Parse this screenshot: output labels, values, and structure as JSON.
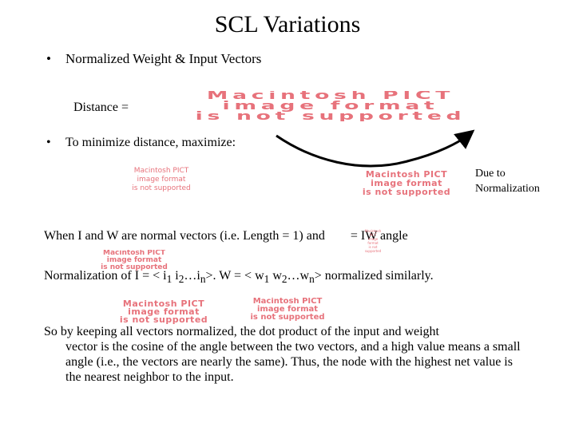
{
  "title": "SCL Variations",
  "bullet1": {
    "marker": "•",
    "text": "Normalized Weight & Input Vectors"
  },
  "distance_label": "Distance =",
  "bullet2": {
    "marker": "•",
    "text": "To minimize distance, maximize:"
  },
  "due_note": "Due to Normalization",
  "line1": {
    "before": "When I and W are normal vectors (i.e. Length = 1) and",
    "after": "= IW angle"
  },
  "line2": {
    "a": "Normalization of I = < i",
    "s1": "1",
    "b": " i",
    "s2": "2",
    "c": "…i",
    "sn": "n",
    "d": ">. W = < w",
    "t1": "1",
    "e": " w",
    "t2": "2",
    "f": "…w",
    "tn": "n",
    "g": "> normalized similarly."
  },
  "paragraph": {
    "first": "So by keeping all vectors normalized, the dot product of the input and weight",
    "rest": "vector is the cosine of the angle between the two vectors, and a high value means a small angle (i.e., the vectors are nearly the same). Thus, the node with the highest net value is the nearest neighbor to the input."
  },
  "placeholder": {
    "line1": "Macintosh PICT",
    "line2": "image format",
    "line3": "is not supported"
  },
  "colors": {
    "placeholder_text": "#e7727b",
    "text": "#000000",
    "background": "#ffffff"
  }
}
